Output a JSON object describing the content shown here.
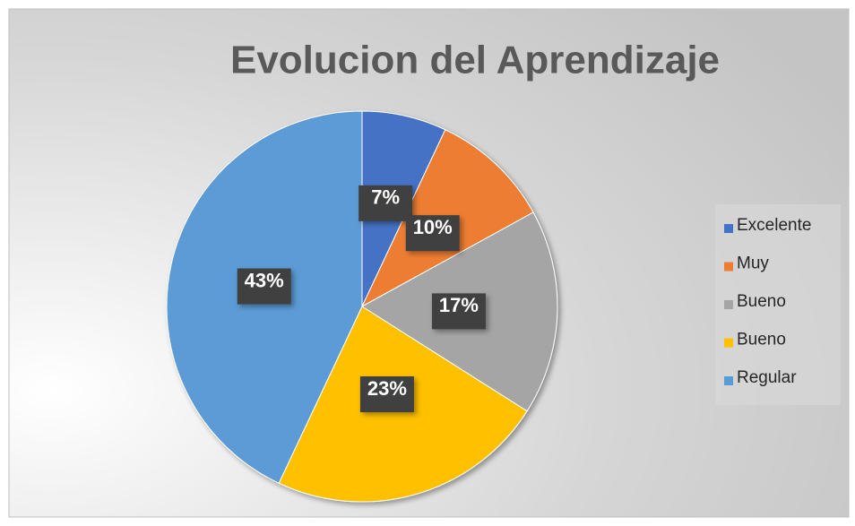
{
  "chart_data": {
    "type": "pie",
    "title": "Evolucion del Aprendizaje",
    "categories": [
      "Excelente",
      "Muy",
      "Bueno",
      "Bueno",
      "Regular"
    ],
    "values": [
      7,
      10,
      17,
      23,
      43
    ],
    "value_labels": [
      "7%",
      "10%",
      "17%",
      "23%",
      "43%"
    ],
    "colors": [
      "#4472c4",
      "#ed7d31",
      "#a5a5a5",
      "#ffc000",
      "#5b9bd5"
    ],
    "legend": "right"
  }
}
